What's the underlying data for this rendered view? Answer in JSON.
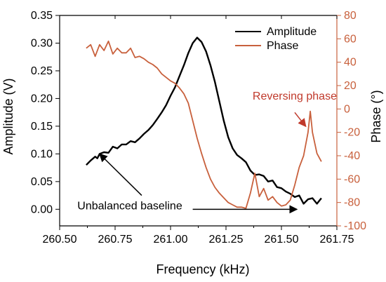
{
  "chart_data": {
    "type": "line",
    "xlabel": "Frequency (kHz)",
    "ylabel_left": "Amplitude (V)",
    "ylabel_right": "Phase (°)",
    "xlim": [
      260.5,
      261.75
    ],
    "ylim_left": [
      -0.03,
      0.35
    ],
    "ylim_right": [
      -100,
      80
    ],
    "x_ticks": [
      "260.50",
      "260.75",
      "261.00",
      "261.25",
      "261.50",
      "261.75"
    ],
    "y_left_ticks": [
      "0.00",
      "0.05",
      "0.10",
      "0.15",
      "0.20",
      "0.25",
      "0.30",
      "0.35"
    ],
    "y_right_ticks": [
      "-100",
      "-80",
      "-60",
      "-40",
      "-20",
      "0",
      "20",
      "40",
      "60",
      "80"
    ],
    "legend_placement": "top-right",
    "grid": false,
    "colors": {
      "amplitude": "#000000",
      "phase": "#c8603c",
      "right_axis": "#c8603c",
      "annotation_red": "#c0392b"
    },
    "series": [
      {
        "name": "Amplitude",
        "axis": "left",
        "points": [
          [
            260.62,
            0.08
          ],
          [
            260.64,
            0.088
          ],
          [
            260.66,
            0.095
          ],
          [
            260.67,
            0.092
          ],
          [
            260.68,
            0.1
          ],
          [
            260.7,
            0.103
          ],
          [
            260.72,
            0.102
          ],
          [
            260.74,
            0.113
          ],
          [
            260.76,
            0.11
          ],
          [
            260.78,
            0.117
          ],
          [
            260.8,
            0.117
          ],
          [
            260.82,
            0.123
          ],
          [
            260.84,
            0.121
          ],
          [
            260.86,
            0.128
          ],
          [
            260.88,
            0.136
          ],
          [
            260.9,
            0.143
          ],
          [
            260.92,
            0.152
          ],
          [
            260.94,
            0.163
          ],
          [
            260.96,
            0.175
          ],
          [
            260.98,
            0.188
          ],
          [
            261.0,
            0.205
          ],
          [
            261.02,
            0.22
          ],
          [
            261.04,
            0.24
          ],
          [
            261.06,
            0.26
          ],
          [
            261.08,
            0.282
          ],
          [
            261.1,
            0.3
          ],
          [
            261.12,
            0.31
          ],
          [
            261.14,
            0.302
          ],
          [
            261.16,
            0.285
          ],
          [
            261.18,
            0.26
          ],
          [
            261.2,
            0.23
          ],
          [
            261.22,
            0.195
          ],
          [
            261.24,
            0.16
          ],
          [
            261.26,
            0.13
          ],
          [
            261.28,
            0.11
          ],
          [
            261.3,
            0.098
          ],
          [
            261.32,
            0.092
          ],
          [
            261.34,
            0.085
          ],
          [
            261.36,
            0.07
          ],
          [
            261.38,
            0.062
          ],
          [
            261.4,
            0.063
          ],
          [
            261.42,
            0.06
          ],
          [
            261.44,
            0.05
          ],
          [
            261.46,
            0.052
          ],
          [
            261.48,
            0.04
          ],
          [
            261.5,
            0.038
          ],
          [
            261.52,
            0.032
          ],
          [
            261.54,
            0.028
          ],
          [
            261.56,
            0.022
          ],
          [
            261.58,
            0.025
          ],
          [
            261.6,
            0.01
          ],
          [
            261.62,
            0.018
          ],
          [
            261.64,
            0.02
          ],
          [
            261.66,
            0.01
          ],
          [
            261.68,
            0.02
          ]
        ]
      },
      {
        "name": "Phase",
        "axis": "right",
        "points": [
          [
            260.62,
            52
          ],
          [
            260.64,
            55
          ],
          [
            260.66,
            45
          ],
          [
            260.68,
            55
          ],
          [
            260.7,
            50
          ],
          [
            260.72,
            58
          ],
          [
            260.74,
            47
          ],
          [
            260.76,
            52
          ],
          [
            260.78,
            48
          ],
          [
            260.8,
            48
          ],
          [
            260.82,
            52
          ],
          [
            260.84,
            44
          ],
          [
            260.86,
            45
          ],
          [
            260.88,
            43
          ],
          [
            260.9,
            40
          ],
          [
            260.92,
            38
          ],
          [
            260.94,
            35
          ],
          [
            260.96,
            30
          ],
          [
            260.98,
            27
          ],
          [
            261.0,
            24
          ],
          [
            261.02,
            22
          ],
          [
            261.04,
            18
          ],
          [
            261.06,
            13
          ],
          [
            261.08,
            5
          ],
          [
            261.1,
            -10
          ],
          [
            261.12,
            -25
          ],
          [
            261.14,
            -38
          ],
          [
            261.16,
            -50
          ],
          [
            261.18,
            -60
          ],
          [
            261.2,
            -67
          ],
          [
            261.22,
            -72
          ],
          [
            261.24,
            -76
          ],
          [
            261.26,
            -80
          ],
          [
            261.28,
            -82
          ],
          [
            261.3,
            -84
          ],
          [
            261.32,
            -84
          ],
          [
            261.34,
            -85
          ],
          [
            261.36,
            -72
          ],
          [
            261.38,
            -55
          ],
          [
            261.4,
            -75
          ],
          [
            261.42,
            -68
          ],
          [
            261.44,
            -78
          ],
          [
            261.46,
            -75
          ],
          [
            261.48,
            -80
          ],
          [
            261.5,
            -83
          ],
          [
            261.52,
            -82
          ],
          [
            261.54,
            -78
          ],
          [
            261.56,
            -65
          ],
          [
            261.58,
            -50
          ],
          [
            261.6,
            -40
          ],
          [
            261.62,
            -20
          ],
          [
            261.63,
            -2
          ],
          [
            261.64,
            -20
          ],
          [
            261.66,
            -38
          ],
          [
            261.68,
            -45
          ]
        ]
      }
    ],
    "annotations": [
      {
        "id": "reversing",
        "text": "Reversing phase",
        "color": "#c0392b",
        "arrow_to": [
          261.61,
          -15
        ],
        "text_at": [
          261.4,
          15
        ]
      },
      {
        "id": "baseline",
        "text": "Unbalanced baseline",
        "color": "#000000",
        "arrow_to": [
          260.68,
          0.1
        ],
        "arrow_to2": [
          261.57,
          0.0
        ]
      }
    ]
  }
}
